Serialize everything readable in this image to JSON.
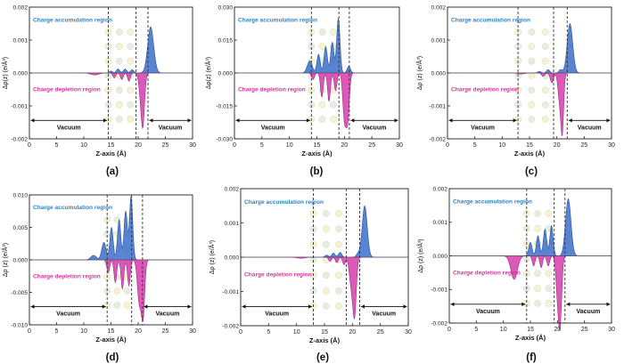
{
  "figure": {
    "accent_blue": "#3b6fc9",
    "accent_magenta": "#d63cab",
    "label_blue": "#2f83c6",
    "label_magenta": "#d9349a"
  },
  "chart_data": [
    {
      "type": "area",
      "panel": "(a)",
      "title": "",
      "xlabel": "Z-axis (Å)",
      "ylabel": "Δρ(z) (e/Å³)",
      "xlim": [
        0,
        30
      ],
      "ylim": [
        -0.002,
        0.002
      ],
      "xticks": [
        0,
        5,
        10,
        15,
        20,
        25,
        30
      ],
      "yticks": [
        -0.002,
        -0.001,
        0.0,
        0.001,
        0.002
      ],
      "ytick_labels": [
        "-0.002",
        "-0.001",
        "0.000",
        "0.001",
        "0.002"
      ],
      "dashed_lines_x": [
        14.5,
        19.6,
        21.8
      ],
      "accumulation_label": "Charge accumulation region",
      "depletion_label": "Charge depletion region",
      "vacuum_left": {
        "label": "Vacuum",
        "from": 0,
        "to": 14.5
      },
      "vacuum_right": {
        "label": "Vacuum",
        "from": 21.8,
        "to": 30
      },
      "series": [
        {
          "name": "positive",
          "peaks": [
            [
              15.0,
              6e-05,
              0.3
            ],
            [
              16.3,
              0.00012,
              0.3
            ],
            [
              17.6,
              0.00012,
              0.3
            ],
            [
              18.9,
              0.0001,
              0.3
            ],
            [
              22.3,
              0.0014,
              0.55
            ]
          ]
        },
        {
          "name": "negative",
          "peaks": [
            [
              12.0,
              -6e-05,
              0.7
            ],
            [
              15.6,
              -0.00015,
              0.25
            ],
            [
              17.0,
              -0.0002,
              0.25
            ],
            [
              18.3,
              -0.00025,
              0.25
            ],
            [
              20.5,
              -0.00065,
              0.35
            ],
            [
              20.9,
              -0.0013,
              0.3
            ]
          ]
        }
      ]
    },
    {
      "type": "area",
      "panel": "(b)",
      "title": "",
      "xlabel": "Z-axis (Å)",
      "ylabel": "Δρ(z) (e/Å³)",
      "xlim": [
        0,
        30
      ],
      "ylim": [
        -0.03,
        0.03
      ],
      "xticks": [
        0,
        5,
        10,
        15,
        20,
        25,
        30
      ],
      "yticks": [
        -0.03,
        -0.015,
        0.0,
        0.015,
        0.03
      ],
      "ytick_labels": [
        "-0.030",
        "-0.015",
        "0.000",
        "0.015",
        "0.030"
      ],
      "dashed_lines_x": [
        14.0,
        19.0,
        20.9
      ],
      "accumulation_label": "Charge accumulation region",
      "depletion_label": "Charge depletion region",
      "vacuum_left": {
        "label": "Vacuum",
        "from": 0,
        "to": 14.0
      },
      "vacuum_right": {
        "label": "Vacuum",
        "from": 20.9,
        "to": 30
      },
      "series": [
        {
          "name": "positive",
          "peaks": [
            [
              13.7,
              0.0055,
              0.45
            ],
            [
              15.3,
              0.0085,
              0.3
            ],
            [
              16.6,
              0.012,
              0.3
            ],
            [
              17.8,
              0.014,
              0.3
            ],
            [
              18.9,
              0.025,
              0.3
            ],
            [
              20.8,
              0.003,
              0.3
            ]
          ]
        },
        {
          "name": "negative",
          "peaks": [
            [
              14.3,
              -0.003,
              0.25
            ],
            [
              15.9,
              -0.011,
              0.25
            ],
            [
              17.2,
              -0.013,
              0.25
            ],
            [
              18.4,
              -0.008,
              0.25
            ],
            [
              20.0,
              -0.02,
              0.3
            ],
            [
              20.6,
              -0.021,
              0.3
            ]
          ]
        }
      ]
    },
    {
      "type": "area",
      "panel": "(c)",
      "title": "",
      "xlabel": "Z-axis (Å)",
      "ylabel": "Δρ (z) (e/Å³)",
      "xlim": [
        0,
        30
      ],
      "ylim": [
        -0.002,
        0.002
      ],
      "xticks": [
        0,
        5,
        10,
        15,
        20,
        25,
        30
      ],
      "yticks": [
        -0.002,
        -0.001,
        0.0,
        0.001,
        0.002
      ],
      "ytick_labels": [
        "-0.002",
        "-0.001",
        "0.000",
        "0.001",
        "0.002"
      ],
      "dashed_lines_x": [
        12.9,
        19.4,
        21.9
      ],
      "accumulation_label": "Charge accumulation region",
      "depletion_label": "Charge depletion region",
      "vacuum_left": {
        "label": "Vacuum",
        "from": 0,
        "to": 12.9
      },
      "vacuum_right": {
        "label": "Vacuum",
        "from": 21.9,
        "to": 30
      },
      "series": [
        {
          "name": "positive",
          "peaks": [
            [
              16.8,
              5e-05,
              0.3
            ],
            [
              18.4,
              0.0001,
              0.3
            ],
            [
              20.7,
              0.0001,
              0.3
            ],
            [
              22.4,
              0.0015,
              0.5
            ]
          ]
        },
        {
          "name": "negative",
          "peaks": [
            [
              13.5,
              -3e-05,
              0.6
            ],
            [
              17.5,
              -0.0001,
              0.3
            ],
            [
              19.1,
              -0.0003,
              0.3
            ],
            [
              20.5,
              -0.0008,
              0.3
            ],
            [
              21.0,
              -0.0017,
              0.25
            ]
          ]
        }
      ]
    },
    {
      "type": "area",
      "panel": "(d)",
      "title": "",
      "xlabel": "Z-axis (Å)",
      "ylabel": "Δρ (z) (e/Å³)",
      "xlim": [
        0,
        30
      ],
      "ylim": [
        -0.01,
        0.01
      ],
      "xticks": [
        0,
        5,
        10,
        15,
        20,
        25,
        30
      ],
      "yticks": [
        -0.01,
        -0.005,
        0.0,
        0.005,
        0.01
      ],
      "ytick_labels": [
        "-0.010",
        "-0.005",
        "0.000",
        "0.005",
        "0.010"
      ],
      "dashed_lines_x": [
        14.3,
        18.8,
        20.8
      ],
      "accumulation_label": "Charge accumulation region",
      "depletion_label": "Charge depletion region",
      "vacuum_left": {
        "label": "Vacuum",
        "from": 0,
        "to": 14.3
      },
      "vacuum_right": {
        "label": "Vacuum",
        "from": 20.8,
        "to": 30
      },
      "series": [
        {
          "name": "positive",
          "peaks": [
            [
              11.8,
              0.0007,
              0.5
            ],
            [
              13.7,
              0.0027,
              0.4
            ],
            [
              15.1,
              0.005,
              0.3
            ],
            [
              16.5,
              0.0062,
              0.3
            ],
            [
              17.7,
              0.0075,
              0.3
            ],
            [
              18.7,
              0.0098,
              0.3
            ]
          ]
        },
        {
          "name": "negative",
          "peaks": [
            [
              14.5,
              -0.002,
              0.25
            ],
            [
              15.8,
              -0.0035,
              0.25
            ],
            [
              17.1,
              -0.0045,
              0.25
            ],
            [
              18.3,
              -0.004,
              0.25
            ],
            [
              20.2,
              -0.0065,
              0.35
            ],
            [
              20.9,
              -0.0085,
              0.3
            ]
          ]
        }
      ]
    },
    {
      "type": "area",
      "panel": "(e)",
      "title": "",
      "xlabel": "Z-axis (Å)",
      "ylabel": "Δρ (z) (e/Å³)",
      "xlim": [
        0,
        30
      ],
      "ylim": [
        -0.002,
        0.002
      ],
      "xticks": [
        0,
        5,
        10,
        15,
        20,
        25,
        30
      ],
      "yticks": [
        -0.002,
        -0.001,
        0.0,
        0.001,
        0.002
      ],
      "ytick_labels": [
        "-0.002",
        "-0.001",
        "0.000",
        "0.001",
        "0.002"
      ],
      "dashed_lines_x": [
        13.0,
        18.9,
        21.3
      ],
      "accumulation_label": "Charge accumulation region",
      "depletion_label": "Charge depletion region",
      "vacuum_left": {
        "label": "Vacuum",
        "from": 0,
        "to": 13.0
      },
      "vacuum_right": {
        "label": "Vacuum",
        "from": 21.3,
        "to": 30
      },
      "series": [
        {
          "name": "positive",
          "peaks": [
            [
              15.4,
              6e-05,
              0.3
            ],
            [
              16.6,
              0.00012,
              0.3
            ],
            [
              17.8,
              0.00014,
              0.3
            ],
            [
              21.0,
              0.0001,
              0.3
            ],
            [
              22.2,
              0.0015,
              0.45
            ]
          ]
        },
        {
          "name": "negative",
          "peaks": [
            [
              10.8,
              -3e-05,
              0.7
            ],
            [
              16.0,
              -0.00012,
              0.25
            ],
            [
              17.2,
              -0.00016,
              0.25
            ],
            [
              18.5,
              -0.00022,
              0.25
            ],
            [
              19.8,
              -0.0008,
              0.35
            ],
            [
              20.4,
              -0.0016,
              0.3
            ]
          ]
        }
      ]
    },
    {
      "type": "area",
      "panel": "(f)",
      "title": "",
      "xlabel": "Z-axis (Å)",
      "ylabel": "Δρ (z) (e/Å³)",
      "xlim": [
        0,
        30
      ],
      "ylim": [
        -0.002,
        0.002
      ],
      "xticks": [
        0,
        5,
        10,
        15,
        20,
        25,
        30
      ],
      "yticks": [
        -0.002,
        -0.001,
        0.0,
        0.001,
        0.002
      ],
      "ytick_labels": [
        "-0.002",
        "-0.001",
        "0.000",
        "0.001",
        "0.002"
      ],
      "dashed_lines_x": [
        14.3,
        19.4,
        21.4
      ],
      "accumulation_label": "Charge accumulation region",
      "depletion_label": "Charge depletion region",
      "vacuum_left": {
        "label": "Vacuum",
        "from": 0,
        "to": 14.3
      },
      "vacuum_right": {
        "label": "Vacuum",
        "from": 21.4,
        "to": 30
      },
      "series": [
        {
          "name": "positive",
          "peaks": [
            [
              15.0,
              0.0004,
              0.3
            ],
            [
              16.4,
              0.0006,
              0.3
            ],
            [
              17.7,
              0.0008,
              0.3
            ],
            [
              18.9,
              0.0009,
              0.3
            ],
            [
              22.0,
              0.0017,
              0.5
            ]
          ]
        },
        {
          "name": "negative",
          "peaks": [
            [
              12.0,
              -0.0007,
              0.6
            ],
            [
              15.6,
              -0.0003,
              0.25
            ],
            [
              17.0,
              -0.00035,
              0.25
            ],
            [
              18.3,
              -0.0003,
              0.25
            ],
            [
              20.0,
              -0.001,
              0.3
            ],
            [
              20.5,
              -0.0019,
              0.3
            ]
          ]
        }
      ]
    }
  ]
}
